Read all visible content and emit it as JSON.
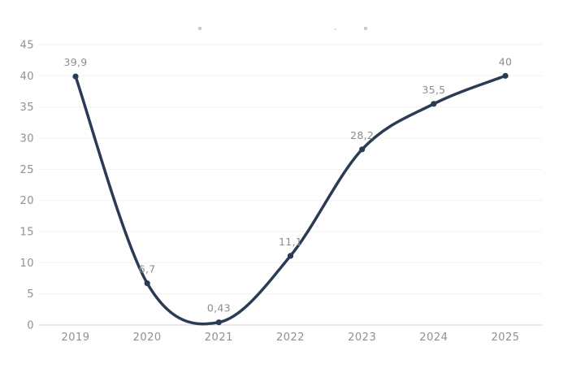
{
  "chart_data": {
    "type": "line",
    "title": "",
    "xlabel": "",
    "ylabel": "",
    "categories": [
      "2019",
      "2020",
      "2021",
      "2022",
      "2023",
      "2024",
      "2025"
    ],
    "values": [
      39.9,
      6.7,
      0.43,
      11.1,
      28.2,
      35.5,
      40
    ],
    "point_labels": [
      "39,9",
      "6,7",
      "0,43",
      "11,1",
      "28,2",
      "35,5",
      "40"
    ],
    "y_ticks": [
      0,
      5,
      10,
      15,
      20,
      25,
      30,
      35,
      40,
      45
    ],
    "ylim": [
      0,
      45
    ],
    "grid": "horizontal",
    "legend": "none",
    "curve": "smooth",
    "colors": {
      "line": "#2b3a55",
      "marker": "#2b3a55",
      "axis_label": "#8d9094",
      "point_label": "#8a8d91",
      "gridline": "#f3f3f3",
      "baseline": "#d9d9d9",
      "background": "#ffffff"
    }
  }
}
